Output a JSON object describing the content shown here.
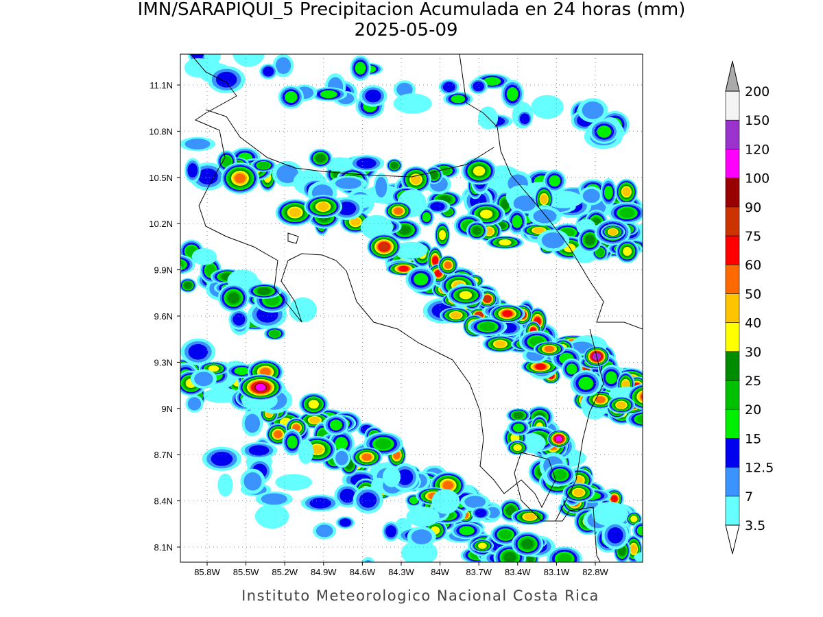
{
  "header": {
    "title": "IMN/SARAPIQUI_5 Precipitacion Acumulada en 24 horas (mm)",
    "date": "2025-05-09"
  },
  "map": {
    "lat_labels": [
      "11.1N",
      "10.8N",
      "10.5N",
      "10.2N",
      "9.9N",
      "9.6N",
      "9.3N",
      "9N",
      "8.7N",
      "8.4N",
      "8.1N"
    ],
    "lon_labels": [
      "85.8W",
      "85.5W",
      "85.2W",
      "84.9W",
      "84.6W",
      "84.3W",
      "84W",
      "83.7W",
      "83.4W",
      "83.1W",
      "82.8W"
    ]
  },
  "colorbar": {
    "levels": [
      3.5,
      7,
      12.5,
      15,
      20,
      25,
      30,
      40,
      50,
      60,
      75,
      90,
      100,
      120,
      150,
      200
    ],
    "colors": [
      "#66ffff",
      "#3a93ff",
      "#0000ee",
      "#00ee00",
      "#00c000",
      "#008c00",
      "#ffff00",
      "#ffc400",
      "#ff6a00",
      "#ff0000",
      "#cc3300",
      "#990000",
      "#ff00ff",
      "#9933cc",
      "#f4f4f4"
    ],
    "under_color": "#ffffff",
    "over_color": "#aaaaaa"
  },
  "footer": "Instituto Meteorologico Nacional Costa Rica"
}
